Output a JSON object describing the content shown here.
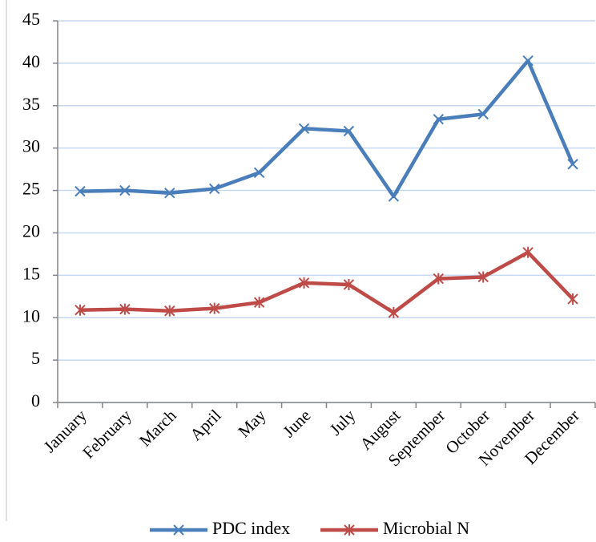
{
  "chart_data": {
    "type": "line",
    "categories": [
      "January",
      "February",
      "March",
      "April",
      "May",
      "June",
      "July",
      "August",
      "September",
      "October",
      "November",
      "December"
    ],
    "series": [
      {
        "name": "PDC index",
        "color": "#4a7ebb",
        "marker": "x",
        "values": [
          24.9,
          25.0,
          24.7,
          25.2,
          27.1,
          32.3,
          32.0,
          24.3,
          33.4,
          34.0,
          40.3,
          28.1
        ]
      },
      {
        "name": "Microbial N",
        "color": "#be4b48",
        "marker": "star",
        "values": [
          10.9,
          11.0,
          10.8,
          11.1,
          11.8,
          14.1,
          13.9,
          10.6,
          14.6,
          14.8,
          17.7,
          12.2
        ]
      }
    ],
    "ylim": [
      0,
      45
    ],
    "yticks": [
      0,
      5,
      10,
      15,
      20,
      25,
      30,
      35,
      40,
      45
    ],
    "grid": true,
    "legend": "bottom"
  }
}
